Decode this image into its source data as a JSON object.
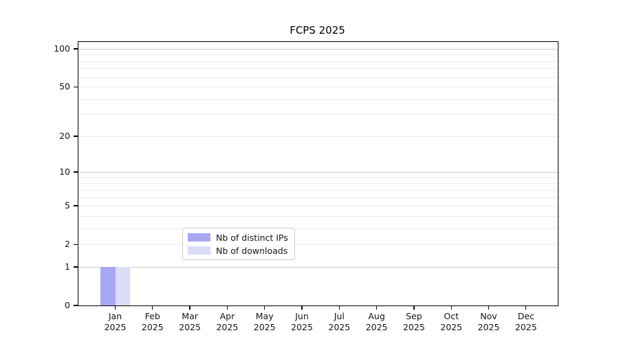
{
  "chart_data": {
    "type": "bar",
    "title": "FCPS 2025",
    "categories": [
      "Jan",
      "Feb",
      "Mar",
      "Apr",
      "May",
      "Jun",
      "Jul",
      "Aug",
      "Sep",
      "Oct",
      "Nov",
      "Dec"
    ],
    "category_year": "2025",
    "series": [
      {
        "name": "Nb of distinct IPs",
        "color": "#a7a7f2",
        "values": [
          1,
          0,
          0,
          0,
          0,
          0,
          0,
          0,
          0,
          0,
          0,
          0
        ]
      },
      {
        "name": "Nb of downloads",
        "color": "#dcdcf9",
        "values": [
          1,
          0,
          0,
          0,
          0,
          0,
          0,
          0,
          0,
          0,
          0,
          0
        ]
      }
    ],
    "y_scale": "log1p",
    "y_ticks": [
      0,
      1,
      2,
      5,
      10,
      20,
      50,
      100
    ],
    "y_gridlines_minor": [
      2,
      3,
      4,
      5,
      6,
      7,
      8,
      9,
      20,
      30,
      40,
      50,
      60,
      70,
      80,
      90
    ],
    "y_gridlines_major": [
      1,
      10,
      100
    ],
    "ylim": [
      0,
      113
    ],
    "legend_position": "lower center",
    "grid": "both",
    "colors": {
      "grid_minor": "#ececec",
      "grid_major": "#c9c9c9",
      "axis": "#000000",
      "text": "#141414",
      "background": "#ffffff"
    }
  }
}
